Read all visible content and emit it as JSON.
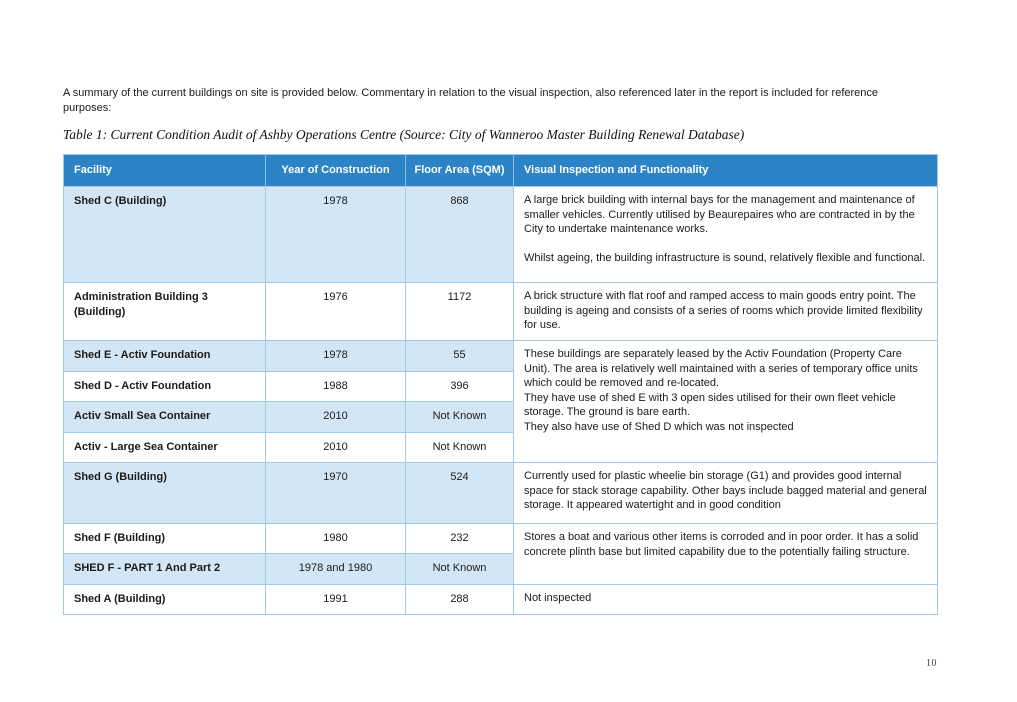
{
  "intro": {
    "line1": "A summary of the current buildings on site is provided below. Commentary in relation to the visual inspection, also referenced later in the report is included for reference",
    "line2": "purposes:"
  },
  "caption": "Table 1: Current Condition Audit of Ashby Operations Centre (Source: City of Wanneroo Master Building Renewal Database)",
  "page": {
    "number": "10"
  },
  "table": {
    "colors": {
      "header_bg": "#2c84c6",
      "header_border": "#86bbe3",
      "shade_bg": "#d3e6f5",
      "grid_border": "#a3c9e9"
    },
    "columns": [
      "Facility",
      "Year of Construction",
      "Floor Area (SQM)",
      "Visual Inspection and Functionality"
    ],
    "rows": [
      {
        "facility": "Shed C (Building)",
        "year": "1978",
        "area": "868",
        "shaded": true,
        "height": 96,
        "inspection": {
          "rowspan": 1,
          "gap": true,
          "paragraphs": [
            "A large brick building with internal bays for the management and maintenance of smaller vehicles. Currently utilised by Beaurepaires who are contracted in by the City to undertake maintenance works.",
            "Whilst ageing, the building infrastructure is sound, relatively flexible and functional."
          ]
        }
      },
      {
        "facility": "Administration Building 3 (Building)",
        "year": "1976",
        "area": "1172",
        "shaded": false,
        "height": 58,
        "inspection": {
          "rowspan": 1,
          "gap": false,
          "paragraphs": [
            "A brick structure with flat roof and ramped access to main goods entry point. The building is ageing and consists of a series of rooms which provide limited flexibility for use."
          ]
        }
      },
      {
        "facility": "Shed E - Activ Foundation",
        "year": "1978",
        "area": "55",
        "shaded": true,
        "height": 31,
        "inspection": {
          "rowspan": 4,
          "gap": false,
          "paragraphs": [
            "These buildings are separately leased by the Activ Foundation (Property Care Unit). The area is relatively well maintained with a series of temporary office units which could be removed and re-located.",
            "They have use of shed E with 3 open sides utilised for their own fleet vehicle storage. The ground is bare earth.",
            "They also have use of Shed D which was not inspected"
          ]
        }
      },
      {
        "facility": "Shed D - Activ Foundation",
        "year": "1988",
        "area": "396",
        "shaded": false,
        "height": 30,
        "inspection": null
      },
      {
        "facility": "Activ Small Sea Container",
        "year": "2010",
        "area": "Not Known",
        "shaded": true,
        "height": 31,
        "inspection": null
      },
      {
        "facility": "Activ - Large Sea Container",
        "year": "2010",
        "area": "Not Known",
        "shaded": false,
        "height": 30,
        "inspection": null
      },
      {
        "facility": "Shed G (Building)",
        "year": "1970",
        "area": "524",
        "shaded": true,
        "height": 61,
        "inspection": {
          "rowspan": 1,
          "gap": false,
          "paragraphs": [
            "Currently used for plastic wheelie bin storage (G1) and provides good internal space for stack storage capability. Other bays include bagged material and general storage. It appeared watertight and in good condition"
          ]
        }
      },
      {
        "facility": "Shed F (Building)",
        "year": "1980",
        "area": "232",
        "shaded": false,
        "height": 30,
        "inspection": {
          "rowspan": 2,
          "gap": false,
          "paragraphs": [
            "Stores a boat and various other items is corroded and in poor order. It has a solid concrete plinth base but limited capability due to the potentially failing structure."
          ]
        }
      },
      {
        "facility": "SHED F - PART 1 And Part 2",
        "year": "1978 and 1980",
        "area": "Not Known",
        "shaded": true,
        "height": 31,
        "inspection": null
      },
      {
        "facility": "Shed A (Building)",
        "year": "1991",
        "area": "288",
        "shaded": false,
        "height": 30,
        "inspection": {
          "rowspan": 1,
          "gap": false,
          "paragraphs": [
            "Not inspected"
          ]
        }
      }
    ]
  }
}
